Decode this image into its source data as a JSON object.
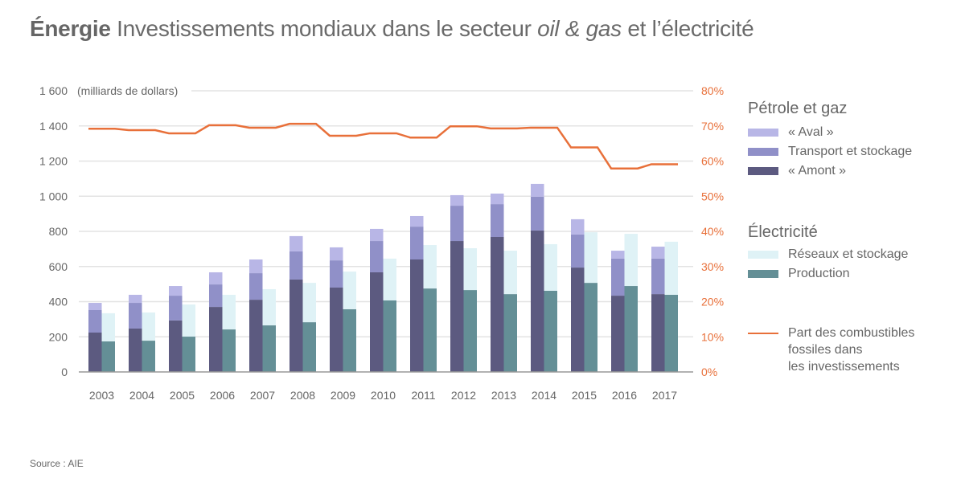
{
  "title": {
    "bold": "Énergie",
    "part1": " Investissements mondiaux dans le secteur ",
    "italic": "oil & gas",
    "part2": " et l’électricité"
  },
  "source": "Source : AIE",
  "legend": {
    "oil_gas_heading": "Pétrole et gaz",
    "electricity_heading": "Électricité",
    "line_label_1": "Part des combustibles",
    "line_label_2": "fossiles dans",
    "line_label_3": "les investissements"
  },
  "colors": {
    "aval": "#b8b6e6",
    "transport": "#9090c8",
    "amont": "#5c5a80",
    "reseaux": "#dff2f6",
    "production": "#648f96",
    "line": "#e8703a",
    "grid": "#e3e3e3",
    "axis": "#999999"
  },
  "chart_data": {
    "type": "bar",
    "title": "Énergie Investissements mondiaux dans le secteur oil & gas et l’électricité",
    "ylabel": "(milliards de dollars)",
    "y2label": "Part des combustibles fossiles dans les investissements",
    "ylim": [
      0,
      1600
    ],
    "y2lim": [
      0,
      80
    ],
    "yticks": [
      "0",
      "200",
      "400",
      "600",
      "800",
      "1 000",
      "1 200",
      "1 400",
      "1 600"
    ],
    "y2ticks": [
      "0%",
      "10%",
      "20%",
      "30%",
      "40%",
      "50%",
      "60%",
      "70%",
      "80%"
    ],
    "grid": true,
    "legend_position": "right",
    "categories": [
      "2003",
      "2004",
      "2005",
      "2006",
      "2007",
      "2008",
      "2009",
      "2010",
      "2011",
      "2012",
      "2013",
      "2014",
      "2015",
      "2016",
      "2017"
    ],
    "stacks": [
      {
        "group": "Pétrole et gaz",
        "series": [
          {
            "name": "« Amont »",
            "key": "amont",
            "values": [
              224,
              247,
              293,
              370,
              411,
              526,
              480,
              567,
              640,
              745,
              768,
              805,
              594,
              434,
              443
            ]
          },
          {
            "name": "Transport et stockage",
            "key": "transport",
            "values": [
              128,
              146,
              141,
              128,
              151,
              160,
              155,
              178,
              187,
              201,
              187,
              192,
              188,
              211,
              202
            ]
          },
          {
            "name": "« Aval »",
            "key": "aval",
            "values": [
              41,
              46,
              55,
              69,
              78,
              87,
              74,
              69,
              60,
              60,
              60,
              73,
              87,
              45,
              68
            ]
          }
        ]
      },
      {
        "group": "Électricité",
        "series": [
          {
            "name": "Production",
            "key": "production",
            "values": [
              174,
              178,
              201,
              242,
              265,
              283,
              357,
              407,
              475,
              466,
              443,
              462,
              507,
              489,
              439
            ]
          },
          {
            "name": "Réseaux et stockage",
            "key": "reseaux",
            "values": [
              160,
              160,
              183,
              197,
              206,
              224,
              214,
              238,
              247,
              238,
              247,
              265,
              288,
              297,
              302
            ]
          }
        ]
      }
    ],
    "line": {
      "name": "Part des combustibles fossiles dans les investissements",
      "axis": "right",
      "unit": "%",
      "values": [
        69.2,
        68.8,
        67.9,
        70.2,
        69.5,
        70.6,
        67.2,
        67.9,
        66.7,
        69.9,
        69.3,
        69.5,
        63.9,
        57.9,
        59.1
      ]
    }
  }
}
